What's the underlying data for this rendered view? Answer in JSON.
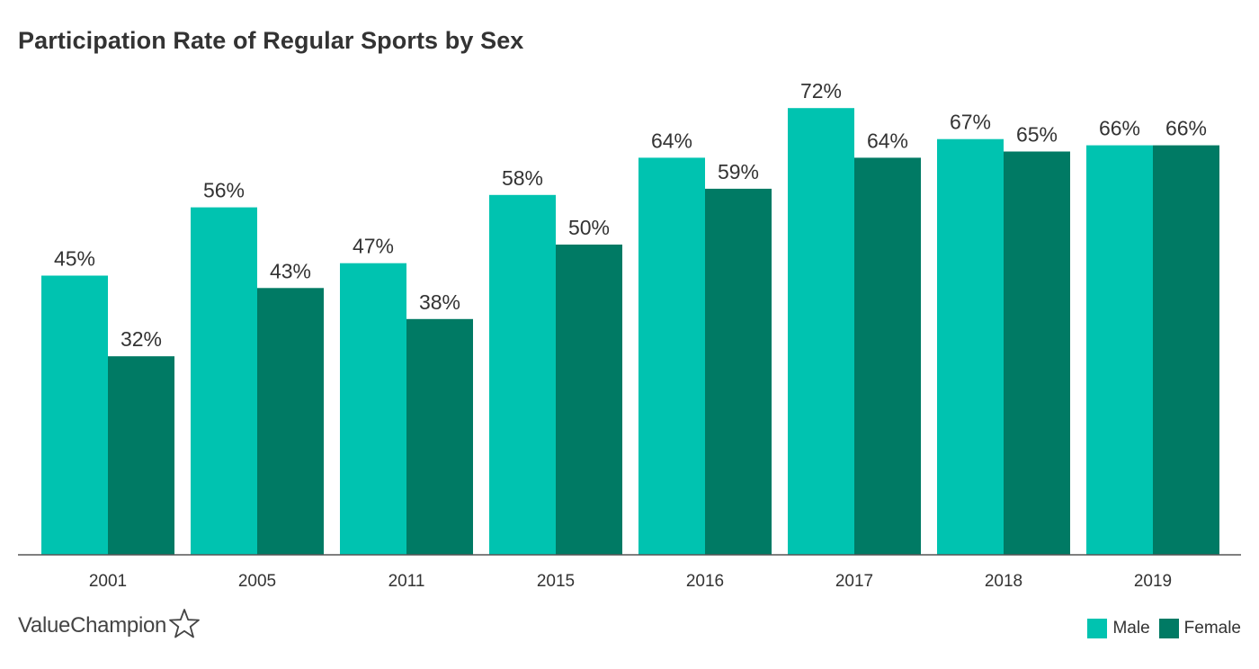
{
  "colors": {
    "male": "#00c3b0",
    "female": "#007a64",
    "axis": "#555555",
    "text": "#333333"
  },
  "chart_data": {
    "type": "bar",
    "title": "Participation Rate of Regular Sports by Sex",
    "categories": [
      "2001",
      "2005",
      "2011",
      "2015",
      "2016",
      "2017",
      "2018",
      "2019"
    ],
    "series": [
      {
        "name": "Male",
        "values": [
          45,
          56,
          47,
          58,
          64,
          72,
          67,
          66
        ],
        "labels": [
          "45%",
          "56%",
          "47%",
          "58%",
          "64%",
          "72%",
          "67%",
          "66%"
        ]
      },
      {
        "name": "Female",
        "values": [
          32,
          43,
          38,
          50,
          59,
          64,
          65,
          66
        ],
        "labels": [
          "32%",
          "43%",
          "38%",
          "50%",
          "59%",
          "64%",
          "65%",
          "66%"
        ]
      }
    ],
    "xlabel": "",
    "ylabel": "",
    "ylim": [
      0,
      100
    ],
    "grid": false,
    "legend_position": "bottom-right"
  },
  "legend": {
    "male_label": "Male",
    "female_label": "Female"
  },
  "brand": {
    "name": "ValueChampion",
    "icon": "star-outline-icon"
  }
}
